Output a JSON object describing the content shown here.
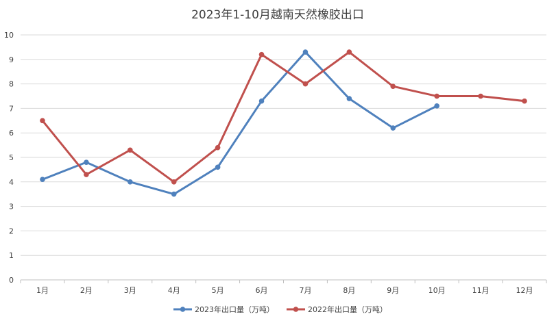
{
  "chart_data": {
    "type": "line",
    "title": "2023年1-10月越南天然橡胶出口",
    "xlabel": "",
    "ylabel": "",
    "categories": [
      "1月",
      "2月",
      "3月",
      "4月",
      "5月",
      "6月",
      "7月",
      "8月",
      "9月",
      "10月",
      "11月",
      "12月"
    ],
    "ylim": [
      0,
      10
    ],
    "yticks": [
      "0",
      "1",
      "2",
      "3",
      "4",
      "5",
      "6",
      "7",
      "8",
      "9",
      "10"
    ],
    "grid": true,
    "legend_position": "bottom",
    "series": [
      {
        "name": "2023年出口量（万吨）",
        "color": "#4f81bd",
        "values": [
          4.1,
          4.8,
          4.0,
          3.5,
          4.6,
          7.3,
          9.3,
          7.4,
          6.2,
          7.1,
          null,
          null
        ]
      },
      {
        "name": "2022年出口量（万吨）",
        "color": "#c0504d",
        "values": [
          6.5,
          4.3,
          5.3,
          4.0,
          5.4,
          9.2,
          8.0,
          9.3,
          7.9,
          7.5,
          7.5,
          7.3
        ]
      }
    ]
  }
}
